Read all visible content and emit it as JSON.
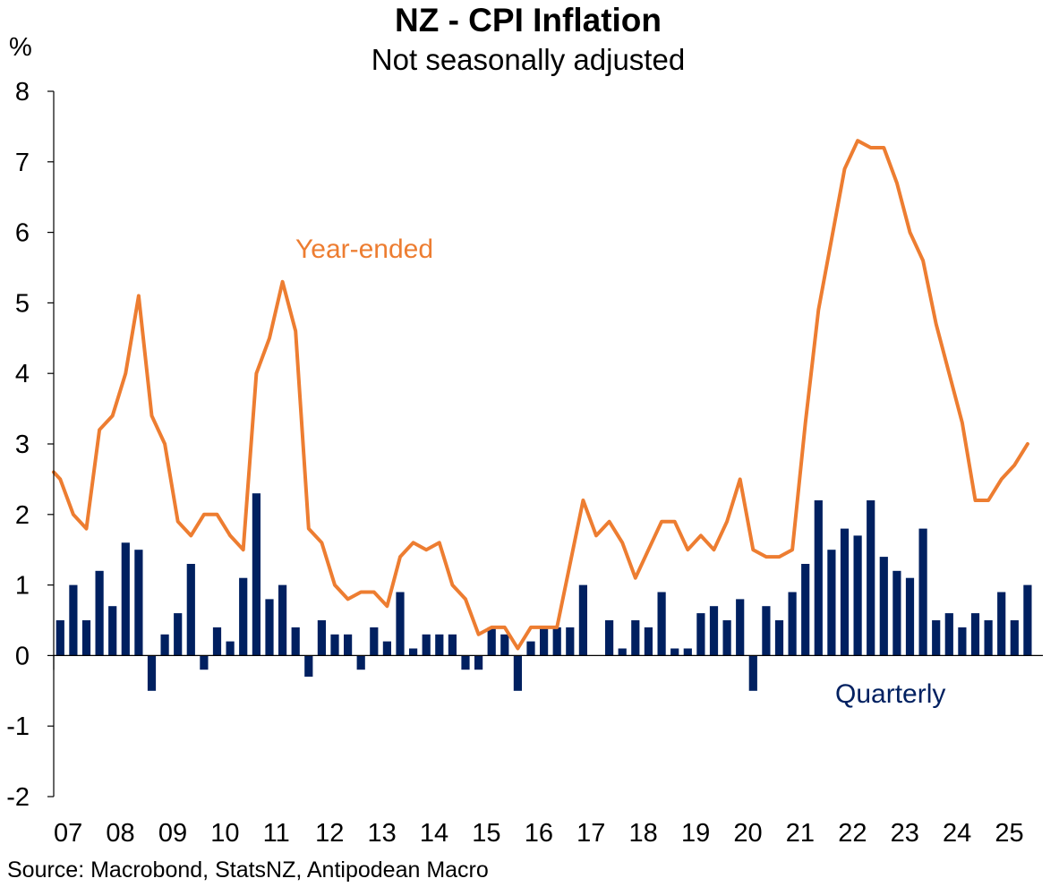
{
  "chart_data": {
    "type": "bar+line",
    "title": "NZ - CPI Inflation",
    "subtitle": "Not seasonally adjusted",
    "ylabel": "%",
    "ylim": [
      -2,
      8
    ],
    "yticks": [
      "-2",
      "-1",
      "0",
      "1",
      "2",
      "3",
      "4",
      "5",
      "6",
      "7",
      "8"
    ],
    "x_start": 2007.0,
    "x_end": 2025.917,
    "xticks": [
      "07",
      "08",
      "09",
      "10",
      "11",
      "12",
      "13",
      "14",
      "15",
      "16",
      "17",
      "18",
      "19",
      "20",
      "21",
      "22",
      "23",
      "24",
      "25"
    ],
    "source": "Source: Macrobond, StatsNZ, Antipodean Macro",
    "colors": {
      "year_ended": "#ED7D31",
      "quarterly": "#002060",
      "axis": "#000000"
    },
    "series": [
      {
        "name": "Year-ended",
        "kind": "line",
        "label": "Year-ended",
        "x": [
          2007.0,
          2007.125,
          2007.375,
          2007.625,
          2007.875,
          2008.125,
          2008.375,
          2008.625,
          2008.875,
          2009.125,
          2009.375,
          2009.625,
          2009.875,
          2010.125,
          2010.375,
          2010.625,
          2010.875,
          2011.125,
          2011.375,
          2011.625,
          2011.875,
          2012.125,
          2012.375,
          2012.625,
          2012.875,
          2013.125,
          2013.375,
          2013.625,
          2013.875,
          2014.125,
          2014.375,
          2014.625,
          2014.875,
          2015.125,
          2015.375,
          2015.625,
          2015.875,
          2016.125,
          2016.375,
          2016.625,
          2016.875,
          2017.125,
          2017.375,
          2017.625,
          2017.875,
          2018.125,
          2018.375,
          2018.625,
          2018.875,
          2019.125,
          2019.375,
          2019.625,
          2019.875,
          2020.125,
          2020.375,
          2020.625,
          2020.875,
          2021.125,
          2021.375,
          2021.625,
          2021.875,
          2022.125,
          2022.375,
          2022.625,
          2022.875,
          2023.125,
          2023.375,
          2023.625,
          2023.875,
          2024.125,
          2024.375,
          2024.625,
          2024.875,
          2025.125,
          2025.375,
          2025.625
        ],
        "values": [
          2.6,
          2.5,
          2.0,
          1.8,
          3.2,
          3.4,
          4.0,
          5.1,
          3.4,
          3.0,
          1.9,
          1.7,
          2.0,
          2.0,
          1.7,
          1.5,
          4.0,
          4.5,
          5.3,
          4.6,
          1.8,
          1.6,
          1.0,
          0.8,
          0.9,
          0.9,
          0.7,
          1.4,
          1.6,
          1.5,
          1.6,
          1.0,
          0.8,
          0.3,
          0.4,
          0.4,
          0.1,
          0.4,
          0.4,
          0.4,
          1.3,
          2.2,
          1.7,
          1.9,
          1.6,
          1.1,
          1.5,
          1.9,
          1.9,
          1.5,
          1.7,
          1.5,
          1.9,
          2.5,
          1.5,
          1.4,
          1.4,
          1.5,
          3.3,
          4.9,
          5.9,
          6.9,
          7.3,
          7.2,
          7.2,
          6.7,
          6.0,
          5.6,
          4.7,
          4.0,
          3.3,
          2.2,
          2.2,
          2.5,
          2.7,
          3.0
        ]
      },
      {
        "name": "Quarterly",
        "kind": "bar",
        "label": "Quarterly",
        "x": [
          2007.125,
          2007.375,
          2007.625,
          2007.875,
          2008.125,
          2008.375,
          2008.625,
          2008.875,
          2009.125,
          2009.375,
          2009.625,
          2009.875,
          2010.125,
          2010.375,
          2010.625,
          2010.875,
          2011.125,
          2011.375,
          2011.625,
          2011.875,
          2012.125,
          2012.375,
          2012.625,
          2012.875,
          2013.125,
          2013.375,
          2013.625,
          2013.875,
          2014.125,
          2014.375,
          2014.625,
          2014.875,
          2015.125,
          2015.375,
          2015.625,
          2015.875,
          2016.125,
          2016.375,
          2016.625,
          2016.875,
          2017.125,
          2017.375,
          2017.625,
          2017.875,
          2018.125,
          2018.375,
          2018.625,
          2018.875,
          2019.125,
          2019.375,
          2019.625,
          2019.875,
          2020.125,
          2020.375,
          2020.625,
          2020.875,
          2021.125,
          2021.375,
          2021.625,
          2021.875,
          2022.125,
          2022.375,
          2022.625,
          2022.875,
          2023.125,
          2023.375,
          2023.625,
          2023.875,
          2024.125,
          2024.375,
          2024.625,
          2024.875,
          2025.125,
          2025.375,
          2025.625,
          2025.875
        ],
        "values": [
          0.5,
          1.0,
          0.5,
          1.2,
          0.7,
          1.6,
          1.5,
          -0.5,
          0.3,
          0.6,
          1.3,
          -0.2,
          0.4,
          0.2,
          1.1,
          2.3,
          0.8,
          1.0,
          0.4,
          -0.3,
          0.5,
          0.3,
          0.3,
          -0.2,
          0.4,
          0.2,
          0.9,
          0.1,
          0.3,
          0.3,
          0.3,
          -0.2,
          -0.2,
          0.4,
          0.3,
          -0.5,
          0.2,
          0.4,
          0.4,
          0.4,
          1.0,
          0.0,
          0.5,
          0.1,
          0.5,
          0.4,
          0.9,
          0.1,
          0.1,
          0.6,
          0.7,
          0.5,
          0.8,
          -0.5,
          0.7,
          0.5,
          0.9,
          1.3,
          2.2,
          1.5,
          1.8,
          1.7,
          2.2,
          1.4,
          1.2,
          1.1,
          1.8,
          0.5,
          0.6,
          0.4,
          0.6,
          0.5,
          0.9,
          0.5,
          1.0,
          0.0
        ]
      }
    ]
  }
}
